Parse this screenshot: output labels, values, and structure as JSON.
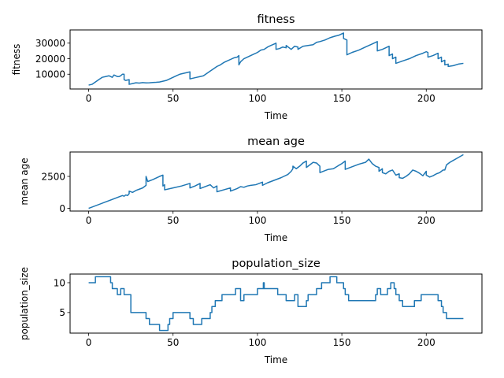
{
  "chart_data": [
    {
      "type": "line",
      "title": "fitness",
      "xlabel": "Time",
      "ylabel": "fitness",
      "xlim": [
        -11,
        233
      ],
      "ylim": [
        500,
        38500
      ],
      "xticks": [
        0,
        50,
        100,
        150,
        200
      ],
      "yticks": [
        10000,
        20000,
        30000
      ],
      "color": "#1f77b4",
      "step": false,
      "series": [
        {
          "x": [
            0,
            2,
            4,
            6,
            8,
            10,
            12,
            14,
            15,
            16,
            17,
            18,
            19,
            20,
            21,
            21,
            22,
            24,
            24,
            26,
            28,
            30,
            32,
            34,
            36,
            38,
            40,
            42,
            44,
            46,
            48,
            50,
            52,
            54,
            56,
            58,
            60,
            60,
            62,
            64,
            66,
            68,
            70,
            72,
            74,
            76,
            78,
            80,
            82,
            84,
            86,
            88,
            89,
            89,
            90,
            92,
            94,
            96,
            98,
            100,
            102,
            104,
            106,
            108,
            110,
            111,
            111,
            113,
            115,
            117,
            117,
            120,
            122,
            124,
            124,
            127,
            130,
            133,
            135,
            137,
            140,
            143,
            146,
            148,
            150,
            151,
            151,
            153,
            153,
            156,
            160,
            164,
            168,
            170,
            171,
            171,
            174,
            177,
            178,
            178,
            180,
            180,
            182,
            182,
            186,
            190,
            194,
            198,
            200,
            201,
            201,
            204,
            207,
            207,
            209,
            209,
            211,
            211,
            213,
            213,
            216,
            219,
            222
          ],
          "y": [
            3000,
            3500,
            5000,
            6500,
            8000,
            8500,
            9000,
            8000,
            9500,
            9000,
            8500,
            8500,
            9000,
            10000,
            10000,
            6500,
            6000,
            6500,
            3500,
            4000,
            4500,
            4300,
            4600,
            4400,
            4500,
            4700,
            4800,
            5000,
            5500,
            6000,
            7000,
            8000,
            9000,
            10000,
            10500,
            11000,
            11500,
            7000,
            7500,
            8000,
            8500,
            9000,
            10500,
            12000,
            13500,
            15000,
            16000,
            17500,
            18500,
            19500,
            20500,
            21000,
            22000,
            16000,
            18000,
            20000,
            21000,
            22000,
            23000,
            24000,
            25500,
            26000,
            27500,
            28500,
            29500,
            30000,
            26000,
            26500,
            27500,
            27000,
            28500,
            26000,
            28000,
            27500,
            26000,
            28000,
            28500,
            29000,
            30500,
            31000,
            32000,
            33500,
            34500,
            35000,
            36000,
            36500,
            33000,
            32000,
            22500,
            24000,
            25500,
            27500,
            29500,
            30500,
            31000,
            25000,
            26000,
            27500,
            28000,
            22000,
            23000,
            20000,
            21000,
            17000,
            18500,
            20000,
            22000,
            23500,
            24500,
            24000,
            21000,
            22000,
            23500,
            20000,
            21000,
            18000,
            19000,
            16000,
            16500,
            15000,
            15500,
            16500,
            17000
          ]
        }
      ]
    },
    {
      "type": "line",
      "title": "mean age",
      "xlabel": "Time",
      "ylabel": "mean age",
      "xlim": [
        -11,
        233
      ],
      "ylim": [
        -210,
        4410
      ],
      "xticks": [
        0,
        50,
        100,
        150,
        200
      ],
      "yticks": [
        0,
        2500
      ],
      "color": "#1f77b4",
      "step": false,
      "series": [
        {
          "x": [
            0,
            10,
            20,
            21,
            22,
            23,
            24,
            24,
            26,
            28,
            30,
            32,
            34,
            34,
            35,
            38,
            42,
            44,
            44,
            45,
            45,
            50,
            55,
            60,
            60,
            63,
            66,
            66,
            70,
            72,
            74,
            76,
            76,
            80,
            84,
            84,
            88,
            90,
            92,
            94,
            96,
            99,
            101,
            103,
            103,
            106,
            110,
            114,
            118,
            120,
            121,
            121,
            123,
            125,
            127,
            129,
            129,
            131,
            133,
            135,
            137,
            137,
            140,
            142,
            145,
            148,
            150,
            152,
            152,
            156,
            160,
            164,
            166,
            168,
            170,
            172,
            172,
            174,
            174,
            176,
            178,
            180,
            182,
            184,
            184,
            186,
            188,
            190,
            192,
            194,
            196,
            198,
            200,
            200,
            202,
            204,
            206,
            208,
            210,
            211,
            212,
            214,
            216,
            218,
            222
          ],
          "y": [
            0,
            500,
            1000,
            950,
            1050,
            1000,
            1150,
            1350,
            1250,
            1400,
            1500,
            1600,
            1800,
            2500,
            2100,
            2250,
            2500,
            2600,
            1750,
            1850,
            1450,
            1600,
            1750,
            1950,
            1600,
            1750,
            1950,
            1550,
            1750,
            1850,
            1600,
            1750,
            1300,
            1450,
            1600,
            1350,
            1550,
            1700,
            1650,
            1750,
            1800,
            1850,
            1950,
            2050,
            1800,
            2000,
            2200,
            2400,
            2650,
            2900,
            3100,
            3300,
            3100,
            3300,
            3550,
            3700,
            3200,
            3400,
            3600,
            3550,
            3300,
            2800,
            2950,
            3050,
            3100,
            3350,
            3500,
            3700,
            3050,
            3250,
            3450,
            3600,
            3850,
            3500,
            3300,
            3200,
            2900,
            3100,
            2800,
            2700,
            2900,
            3000,
            2600,
            2700,
            2400,
            2350,
            2500,
            2700,
            3000,
            2900,
            2750,
            2550,
            2900,
            2600,
            2450,
            2550,
            2700,
            2800,
            3000,
            3000,
            3400,
            3600,
            3750,
            3900,
            4200
          ]
        }
      ]
    },
    {
      "type": "line",
      "title": "population_size",
      "xlabel": "Time",
      "ylabel": "population_size",
      "xlim": [
        -11,
        233
      ],
      "ylim": [
        1.55,
        11.45
      ],
      "xticks": [
        0,
        50,
        100,
        150,
        200
      ],
      "yticks": [
        5,
        10
      ],
      "color": "#1f77b4",
      "step": true,
      "series": [
        {
          "x": [
            0,
            4,
            11,
            13,
            14,
            17,
            18,
            19,
            21,
            25,
            26,
            34,
            36,
            39,
            41,
            42,
            47,
            48,
            50,
            60,
            61,
            62,
            63,
            65,
            67,
            72,
            73,
            75,
            79,
            81,
            84,
            87,
            89,
            90,
            92,
            95,
            100,
            103,
            103.5,
            104,
            110,
            112,
            113,
            117,
            120,
            122,
            123,
            124,
            125,
            128,
            129,
            130,
            132,
            133,
            135,
            137,
            138,
            143,
            146,
            147,
            149,
            151,
            152,
            153,
            154,
            157,
            159,
            165,
            170,
            171,
            173,
            175,
            176,
            177,
            179,
            180,
            181,
            182,
            184,
            186,
            190,
            193,
            194,
            197,
            200,
            202,
            206,
            207,
            208,
            209,
            210,
            212,
            222
          ],
          "y": [
            10,
            11,
            11,
            10,
            9,
            8,
            8,
            9,
            8,
            5,
            5,
            4,
            3,
            3,
            3,
            2,
            3,
            4,
            5,
            4,
            4,
            3,
            3,
            3,
            4,
            5,
            6,
            7,
            8,
            8,
            8,
            9,
            9,
            7,
            8,
            8,
            9,
            9,
            10,
            9,
            9,
            8,
            8,
            7,
            7,
            8,
            8,
            6,
            6,
            6,
            7,
            8,
            8,
            8,
            9,
            9,
            10,
            11,
            11,
            10,
            10,
            9,
            8,
            8,
            7,
            7,
            7,
            7,
            8,
            9,
            8,
            8,
            8,
            9,
            10,
            10,
            9,
            8,
            7,
            6,
            6,
            7,
            7,
            8,
            8,
            8,
            8,
            7,
            7,
            6,
            5,
            4,
            4
          ]
        }
      ]
    }
  ]
}
